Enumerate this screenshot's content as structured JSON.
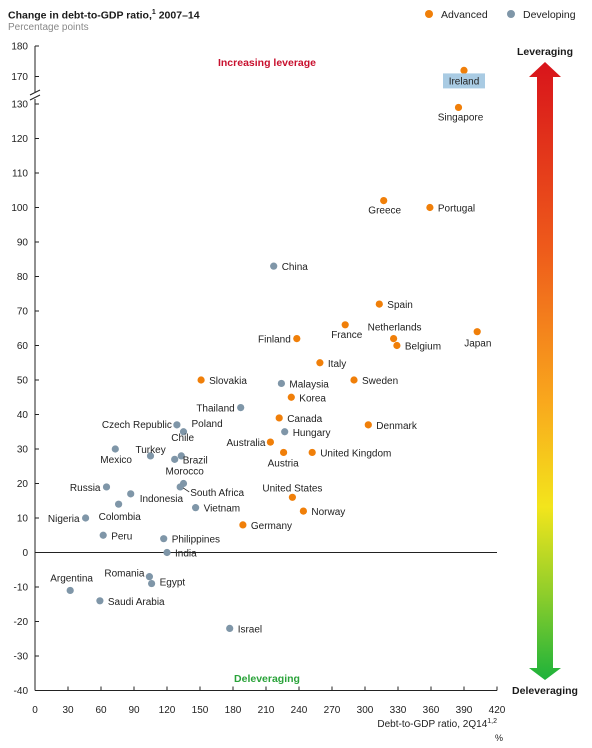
{
  "title": "Change in debt-to-GDP ratio,",
  "title_sup": "1",
  "title_suffix": " 2007–14",
  "subtitle": "Percentage points",
  "legend": [
    {
      "label": "Advanced",
      "color": "#f07f09"
    },
    {
      "label": "Developing",
      "color": "#7f96a8"
    }
  ],
  "chart_data": {
    "type": "scatter",
    "xlabel": "Debt-to-GDP ratio, 2Q14",
    "xlabel_sup": "1,2",
    "xunit": "%",
    "xlim": [
      0,
      420
    ],
    "xticks": [
      0,
      30,
      60,
      90,
      120,
      150,
      180,
      210,
      240,
      270,
      300,
      330,
      360,
      390,
      420
    ],
    "ylim": [
      -40,
      180
    ],
    "yticks": [
      -40,
      -30,
      -20,
      -10,
      0,
      10,
      20,
      30,
      40,
      50,
      60,
      70,
      80,
      90,
      100,
      110,
      120,
      130,
      170,
      180
    ],
    "axis_break": "between 130 and 170",
    "annotations": {
      "top": "Increasing leverage",
      "bottom": "Deleveraging",
      "arrow_top": "Leveraging",
      "arrow_bottom": "Deleveraging"
    },
    "series": [
      {
        "name": "Advanced",
        "color": "#f07f09",
        "points": [
          {
            "label": "Ireland",
            "x": 390,
            "y": 172,
            "highlight": true
          },
          {
            "label": "Singapore",
            "x": 385,
            "y": 129
          },
          {
            "label": "Greece",
            "x": 317,
            "y": 102
          },
          {
            "label": "Portugal",
            "x": 359,
            "y": 100
          },
          {
            "label": "Spain",
            "x": 313,
            "y": 72
          },
          {
            "label": "Netherlands",
            "x": 326,
            "y": 62
          },
          {
            "label": "France",
            "x": 282,
            "y": 66
          },
          {
            "label": "Finland",
            "x": 238,
            "y": 62
          },
          {
            "label": "Belgium",
            "x": 329,
            "y": 60
          },
          {
            "label": "Japan",
            "x": 402,
            "y": 64
          },
          {
            "label": "Italy",
            "x": 259,
            "y": 55
          },
          {
            "label": "Slovakia",
            "x": 151,
            "y": 50
          },
          {
            "label": "Sweden",
            "x": 290,
            "y": 50
          },
          {
            "label": "Korea",
            "x": 233,
            "y": 45
          },
          {
            "label": "Canada",
            "x": 222,
            "y": 39
          },
          {
            "label": "Denmark",
            "x": 303,
            "y": 37
          },
          {
            "label": "Australia",
            "x": 214,
            "y": 32
          },
          {
            "label": "Austria",
            "x": 226,
            "y": 29
          },
          {
            "label": "United Kingdom",
            "x": 252,
            "y": 29
          },
          {
            "label": "United States",
            "x": 234,
            "y": 16
          },
          {
            "label": "Norway",
            "x": 244,
            "y": 12
          },
          {
            "label": "Germany",
            "x": 189,
            "y": 8
          }
        ]
      },
      {
        "name": "Developing",
        "color": "#7f96a8",
        "points": [
          {
            "label": "China",
            "x": 217,
            "y": 83
          },
          {
            "label": "Malaysia",
            "x": 224,
            "y": 49
          },
          {
            "label": "Thailand",
            "x": 187,
            "y": 42
          },
          {
            "label": "Czech Republic",
            "x": 129,
            "y": 37
          },
          {
            "label": "Poland",
            "x": 135,
            "y": 35
          },
          {
            "label": "Hungary",
            "x": 227,
            "y": 35
          },
          {
            "label": "Chile",
            "x": 133,
            "y": 28
          },
          {
            "label": "Turkey",
            "x": 105,
            "y": 28
          },
          {
            "label": "Mexico",
            "x": 73,
            "y": 30
          },
          {
            "label": "Brazil",
            "x": 127,
            "y": 27
          },
          {
            "label": "Morocco",
            "x": 135,
            "y": 20
          },
          {
            "label": "South Africa",
            "x": 132,
            "y": 19
          },
          {
            "label": "Russia",
            "x": 65,
            "y": 19
          },
          {
            "label": "Indonesia",
            "x": 87,
            "y": 17
          },
          {
            "label": "Vietnam",
            "x": 146,
            "y": 13
          },
          {
            "label": "Colombia",
            "x": 76,
            "y": 14
          },
          {
            "label": "Nigeria",
            "x": 46,
            "y": 10
          },
          {
            "label": "Peru",
            "x": 62,
            "y": 5
          },
          {
            "label": "Philippines",
            "x": 117,
            "y": 4
          },
          {
            "label": "India",
            "x": 120,
            "y": 0
          },
          {
            "label": "Romania",
            "x": 104,
            "y": -7
          },
          {
            "label": "Egypt",
            "x": 106,
            "y": -9
          },
          {
            "label": "Argentina",
            "x": 32,
            "y": -11
          },
          {
            "label": "Saudi Arabia",
            "x": 59,
            "y": -14
          },
          {
            "label": "Israel",
            "x": 177,
            "y": -22
          }
        ]
      }
    ]
  }
}
